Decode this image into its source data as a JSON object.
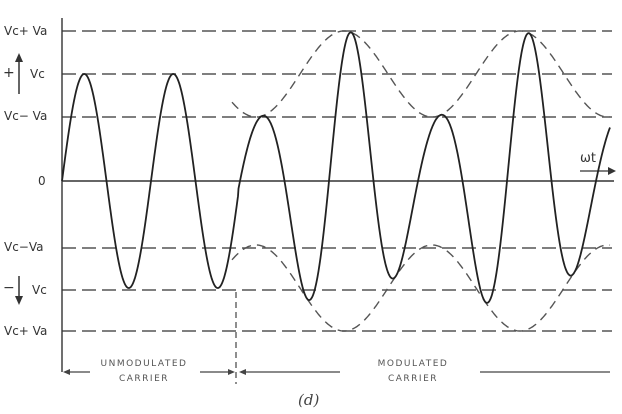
{
  "y_labels": {
    "vc_plus_va_top": "Vc+ Va",
    "vc_top": "Vc",
    "vc_minus_va_top": "Vc− Va",
    "zero": "0",
    "vc_minus_va_bottom": "Vc−Va",
    "vc_bottom": "Vc",
    "vc_plus_va_bottom": "Vc+ Va"
  },
  "sign_plus": "+",
  "sign_minus": "−",
  "axis_label": "ωt",
  "captions": {
    "unmodulated_line1": "UNMODULATED",
    "unmodulated_line2": "CARRIER",
    "modulated_line1": "MODULATED",
    "modulated_line2": "CARRIER"
  },
  "figure_label": "(d)"
}
